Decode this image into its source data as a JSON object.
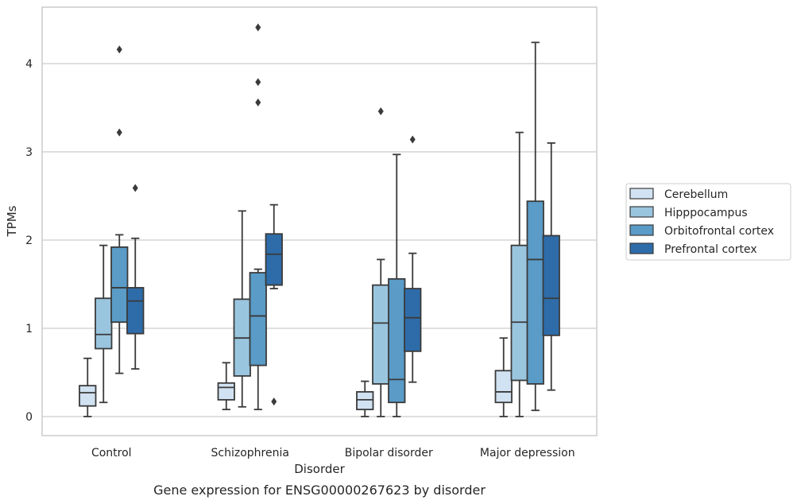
{
  "chart_data": {
    "type": "box",
    "title": "",
    "caption": "Gene expression for ENSG00000267623 by disorder",
    "xlabel": "Disorder",
    "ylabel": "TPMs",
    "ylim": [
      -0.2,
      4.65
    ],
    "yticks": [
      "0",
      "1",
      "2",
      "3",
      "4"
    ],
    "grid": "horizontal",
    "legend_position": "right",
    "categories": [
      "Control",
      "Schizophrenia",
      "Bipolar disorder",
      "Major depression"
    ],
    "series": [
      {
        "name": "Cerebellum",
        "color": "#d1e2f2",
        "boxes": [
          {
            "whislo": 0.0,
            "q1": 0.12,
            "median": 0.27,
            "q3": 0.35,
            "whishi": 0.66,
            "fliers": []
          },
          {
            "whislo": 0.08,
            "q1": 0.19,
            "median": 0.33,
            "q3": 0.38,
            "whishi": 0.61,
            "fliers": []
          },
          {
            "whislo": 0.0,
            "q1": 0.08,
            "median": 0.19,
            "q3": 0.28,
            "whishi": 0.4,
            "fliers": []
          },
          {
            "whislo": 0.0,
            "q1": 0.16,
            "median": 0.28,
            "q3": 0.52,
            "whishi": 0.89,
            "fliers": []
          }
        ]
      },
      {
        "name": "Hipppocampus",
        "color": "#9ac5df",
        "boxes": [
          {
            "whislo": 0.16,
            "q1": 0.77,
            "median": 0.93,
            "q3": 1.34,
            "whishi": 1.94,
            "fliers": []
          },
          {
            "whislo": 0.11,
            "q1": 0.46,
            "median": 0.89,
            "q3": 1.33,
            "whishi": 2.33,
            "fliers": []
          },
          {
            "whislo": 0.0,
            "q1": 0.37,
            "median": 1.06,
            "q3": 1.49,
            "whishi": 1.78,
            "fliers": [
              3.46
            ]
          },
          {
            "whislo": 0.0,
            "q1": 0.41,
            "median": 1.07,
            "q3": 1.94,
            "whishi": 3.22,
            "fliers": []
          }
        ]
      },
      {
        "name": "Orbitofrontal cortex",
        "color": "#5a9bc7",
        "boxes": [
          {
            "whislo": 0.49,
            "q1": 1.07,
            "median": 1.46,
            "q3": 1.92,
            "whishi": 2.06,
            "fliers": [
              4.16,
              3.22
            ]
          },
          {
            "whislo": 0.08,
            "q1": 0.58,
            "median": 1.14,
            "q3": 1.63,
            "whishi": 1.67,
            "fliers": [
              4.41,
              3.79,
              3.56
            ]
          },
          {
            "whislo": 0.0,
            "q1": 0.16,
            "median": 0.42,
            "q3": 1.56,
            "whishi": 2.97,
            "fliers": []
          },
          {
            "whislo": 0.07,
            "q1": 0.37,
            "median": 1.78,
            "q3": 2.44,
            "whishi": 4.24,
            "fliers": []
          }
        ]
      },
      {
        "name": "Prefrontal cortex",
        "color": "#2e6ca9",
        "boxes": [
          {
            "whislo": 0.54,
            "q1": 0.94,
            "median": 1.31,
            "q3": 1.46,
            "whishi": 2.02,
            "fliers": [
              2.59
            ]
          },
          {
            "whislo": 1.45,
            "q1": 1.49,
            "median": 1.84,
            "q3": 2.07,
            "whishi": 2.4,
            "fliers": [
              0.17
            ]
          },
          {
            "whislo": 0.39,
            "q1": 0.74,
            "median": 1.12,
            "q3": 1.45,
            "whishi": 1.85,
            "fliers": [
              3.14
            ]
          },
          {
            "whislo": 0.3,
            "q1": 0.92,
            "median": 1.34,
            "q3": 2.05,
            "whishi": 3.1,
            "fliers": []
          }
        ]
      }
    ]
  }
}
